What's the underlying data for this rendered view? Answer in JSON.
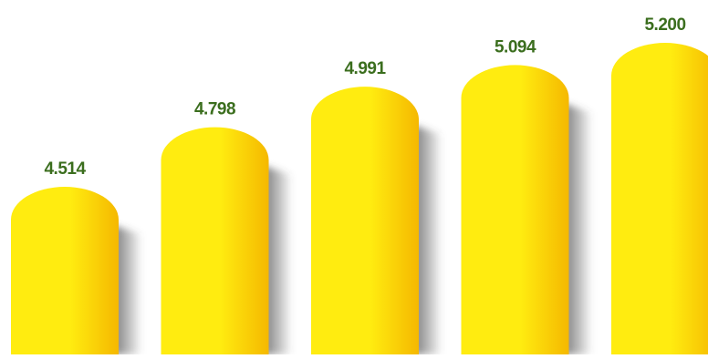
{
  "chart_data": {
    "type": "bar",
    "categories": [
      "",
      "",
      "",
      "",
      ""
    ],
    "series": [
      {
        "values": [
          4514,
          4798,
          4991,
          5094,
          5200
        ]
      }
    ],
    "value_labels": [
      "4.514",
      "4.798",
      "4.991",
      "5.094",
      "5.200"
    ],
    "title": "",
    "xlabel": "",
    "ylabel": "",
    "ylim": [
      3500,
      5200
    ],
    "grid": false,
    "legend": "none"
  },
  "colors": {
    "bar_light": "#FFEC10",
    "bar_dark": "#F5B800",
    "shadow": "#4a4a4a",
    "label": "#3b6e1e",
    "background": "#ffffff"
  }
}
